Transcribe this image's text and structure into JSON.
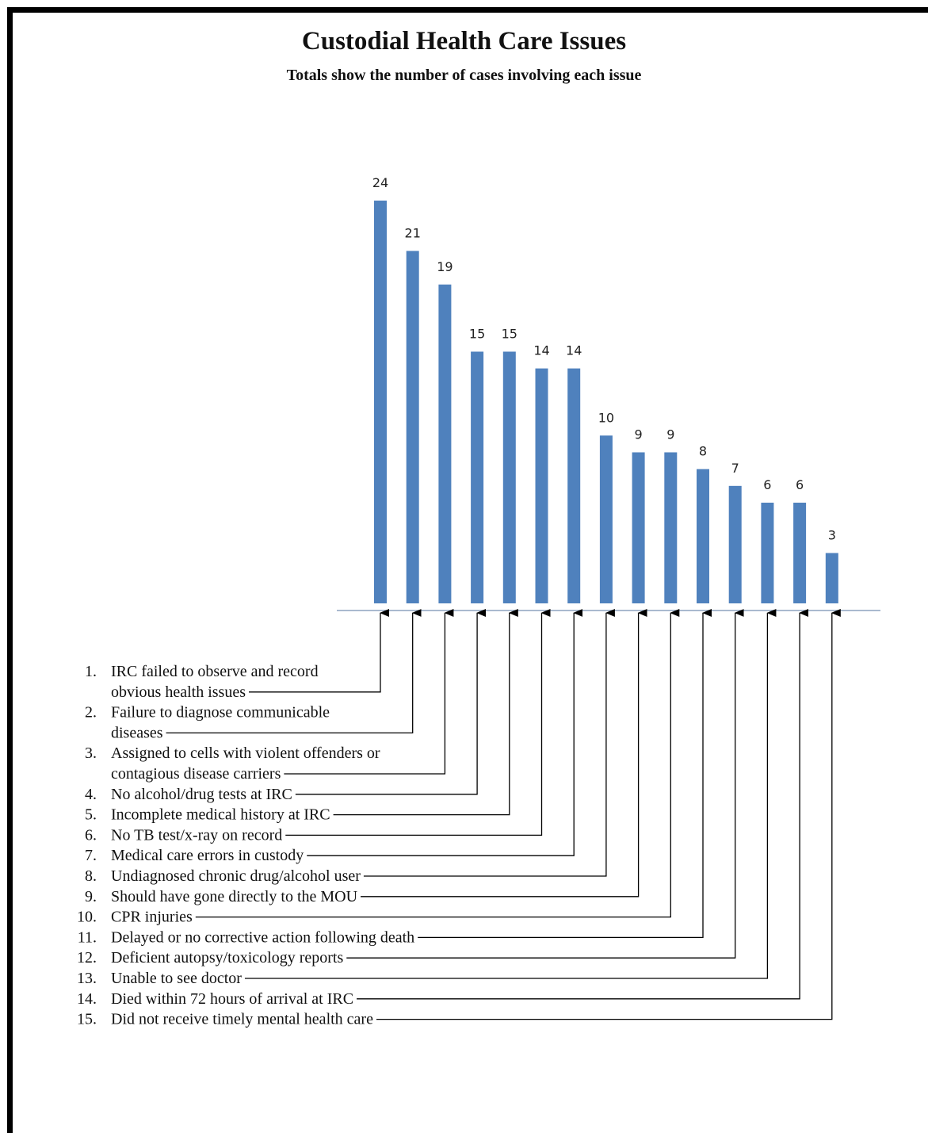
{
  "title": "Custodial Health Care Issues",
  "subtitle": "Totals show the number of cases involving each issue",
  "colors": {
    "bar": "#4f81bd",
    "axis": "#8da4bf",
    "line": "#000000",
    "frame": "#000000"
  },
  "chart_data": {
    "type": "bar",
    "categories": [
      "1",
      "2",
      "3",
      "4",
      "5",
      "6",
      "7",
      "8",
      "9",
      "10",
      "11",
      "12",
      "13",
      "14",
      "15"
    ],
    "values": [
      24,
      21,
      19,
      15,
      15,
      14,
      14,
      10,
      9,
      9,
      8,
      7,
      6,
      6,
      3
    ],
    "title": "Custodial Health Care Issues",
    "subtitle": "Totals show the number of cases involving each issue",
    "xlabel": "",
    "ylabel": "",
    "ylim": [
      0,
      24
    ],
    "grid": false,
    "legend": [
      {
        "num": "1.",
        "lines": [
          "IRC failed to observe and record",
          "obvious health issues"
        ]
      },
      {
        "num": "2.",
        "lines": [
          "Failure to diagnose communicable",
          "diseases"
        ]
      },
      {
        "num": "3.",
        "lines": [
          "Assigned to cells with violent offenders or",
          "contagious disease carriers"
        ]
      },
      {
        "num": "4.",
        "lines": [
          "No alcohol/drug tests at IRC"
        ]
      },
      {
        "num": "5.",
        "lines": [
          "Incomplete medical history at IRC"
        ]
      },
      {
        "num": "6.",
        "lines": [
          "No TB test/x-ray on record"
        ]
      },
      {
        "num": "7.",
        "lines": [
          "Medical care errors in custody"
        ]
      },
      {
        "num": "8.",
        "lines": [
          "Undiagnosed chronic drug/alcohol user"
        ]
      },
      {
        "num": "9.",
        "lines": [
          "Should have gone directly to the MOU"
        ]
      },
      {
        "num": "10.",
        "lines": [
          "CPR injuries"
        ]
      },
      {
        "num": "11.",
        "lines": [
          "Delayed or no corrective action following death"
        ]
      },
      {
        "num": "12.",
        "lines": [
          "Deficient autopsy/toxicology reports"
        ]
      },
      {
        "num": "13.",
        "lines": [
          "Unable to see doctor"
        ]
      },
      {
        "num": "14.",
        "lines": [
          "Died within 72 hours of arrival at IRC"
        ]
      },
      {
        "num": "15.",
        "lines": [
          "Did not receive timely mental health care"
        ]
      }
    ]
  }
}
